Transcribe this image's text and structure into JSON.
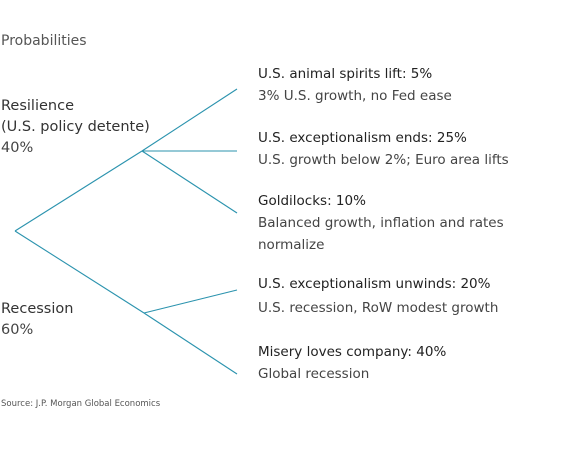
{
  "title": "Probabilities",
  "branches": [
    {
      "label_line1": "Resilience",
      "label_line2": "(U.S. policy detente)",
      "probability": "40%"
    },
    {
      "label_line1": "Recession",
      "probability": "60%"
    }
  ],
  "scenarios": [
    {
      "head": "U.S. animal spirits lift: 5%",
      "desc": "3% U.S. growth, no Fed ease"
    },
    {
      "head": "U.S. exceptionalism ends: 25%",
      "desc": "U.S. growth below 2%; Euro area lifts"
    },
    {
      "head": "Goldilocks: 10%",
      "desc_line1": "Balanced growth, inflation and rates",
      "desc_line2": "normalize"
    },
    {
      "head": "U.S. exceptionalism unwinds: 20%",
      "desc": "U.S. recession, RoW modest growth"
    },
    {
      "head": "Misery loves company: 40%",
      "desc": "Global recession"
    }
  ],
  "source": "Source: J.P. Morgan Global Economics",
  "colors": {
    "line": "#2b93ae",
    "text": "#333333"
  }
}
